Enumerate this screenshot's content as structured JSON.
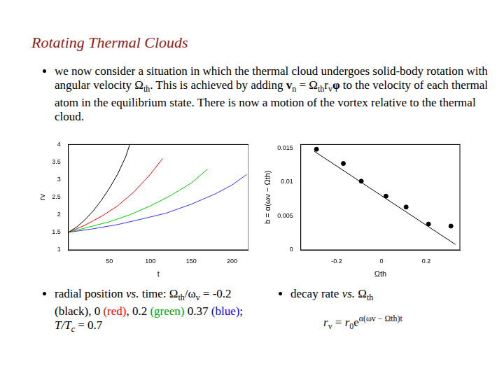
{
  "title": "Rotating Thermal Clouds",
  "bullets": [
    [
      {
        "text": "we now consider a situation in which the thermal cloud undergoes solid-body rotation with angular velocity Ω"
      },
      {
        "text": "th",
        "style": "sub"
      },
      {
        "text": ". This is achieved by adding "
      },
      {
        "text": "v",
        "style": "bold"
      },
      {
        "text": "n",
        "style": "sub"
      },
      {
        "text": " = Ω"
      },
      {
        "text": "th",
        "style": "sub"
      },
      {
        "text": "r"
      },
      {
        "text": "v",
        "style": "sub"
      },
      {
        "text": "φ",
        "style": "bold"
      },
      {
        "text": " to the velocity of each thermal atom in the equilibrium state. There is now a motion of the vortex relative to the thermal cloud."
      }
    ]
  ],
  "captions": [
    [
      {
        "text": "radial position "
      },
      {
        "text": "vs.",
        "style": "italic"
      },
      {
        "text": " time: Ω"
      },
      {
        "text": "th",
        "style": "sub"
      },
      {
        "text": "/ω"
      },
      {
        "text": "v",
        "style": "sub"
      },
      {
        "text": " = -0.2 (black), 0 "
      },
      {
        "text": "(red)",
        "color": "#ff0000"
      },
      {
        "text": ", 0.2 "
      },
      {
        "text": "(green)",
        "color": "#00a000"
      },
      {
        "text": " 0.37 "
      },
      {
        "text": "(blue)",
        "color": "#0000ff"
      },
      {
        "text": "; "
      },
      {
        "text": "T/T",
        "style": "italic"
      },
      {
        "text": "c",
        "style": "italic sub"
      },
      {
        "text": " = 0.7"
      }
    ],
    [
      {
        "text": "decay rate "
      },
      {
        "text": "vs.",
        "style": "italic"
      },
      {
        "text": " Ω"
      },
      {
        "text": "th",
        "style": "sub"
      }
    ]
  ],
  "formula": [
    {
      "text": "r",
      "style": "italic"
    },
    {
      "text": "v",
      "style": "sub"
    },
    {
      "text": " = "
    },
    {
      "text": "r",
      "style": "italic"
    },
    {
      "text": "0",
      "style": "sub"
    },
    {
      "text": "e"
    },
    {
      "text": "α(ωv − Ωth)t",
      "style": "sup"
    }
  ],
  "chart_data": [
    {
      "type": "line",
      "xlabel": "t",
      "ylabel": "rv",
      "xlim": [
        0,
        220
      ],
      "xticks": [
        50,
        100,
        150,
        200
      ],
      "ylim": [
        1,
        4
      ],
      "yticks": [
        1,
        1.5,
        2,
        2.5,
        3,
        3.5,
        4
      ],
      "grid": false,
      "series": [
        {
          "color": "#000000",
          "x": [
            0,
            10,
            20,
            30,
            40,
            50,
            60,
            70,
            75
          ],
          "values": [
            1.5,
            1.65,
            1.85,
            2.1,
            2.4,
            2.75,
            3.15,
            3.65,
            4.0
          ]
        },
        {
          "color": "#ff0000",
          "x": [
            0,
            20,
            40,
            60,
            80,
            100,
            115
          ],
          "values": [
            1.5,
            1.7,
            1.95,
            2.25,
            2.65,
            3.15,
            3.6
          ]
        },
        {
          "color": "#00cc00",
          "x": [
            0,
            25,
            50,
            75,
            100,
            125,
            150,
            170
          ],
          "values": [
            1.5,
            1.65,
            1.8,
            2.0,
            2.25,
            2.55,
            2.9,
            3.3
          ]
        },
        {
          "color": "#3333ff",
          "x": [
            0,
            30,
            60,
            90,
            120,
            150,
            180,
            200,
            218
          ],
          "values": [
            1.5,
            1.6,
            1.72,
            1.88,
            2.05,
            2.3,
            2.6,
            2.85,
            3.15
          ]
        }
      ]
    },
    {
      "type": "scatter",
      "xlabel": "Ωth",
      "ylabel": "b = α(ωv − Ωth)",
      "xlim": [
        -0.36,
        0.35
      ],
      "xticks": [
        -0.2,
        0,
        0.2
      ],
      "ylim": [
        0,
        0.0155
      ],
      "yticks": [
        0,
        0.005,
        0.01,
        0.015
      ],
      "grid": false,
      "series": [
        {
          "type": "scatter",
          "color": "#000000",
          "marker": "circle",
          "x": [
            -0.29,
            -0.17,
            -0.09,
            0.02,
            0.11,
            0.21,
            0.31
          ],
          "values": [
            0.0148,
            0.0127,
            0.0101,
            0.0079,
            0.0063,
            0.0038,
            0.0035
          ]
        },
        {
          "type": "line",
          "color": "#000000",
          "line_style": "solid",
          "x": [
            -0.3,
            0.33
          ],
          "values": [
            0.0145,
            0.0008
          ]
        }
      ]
    }
  ]
}
